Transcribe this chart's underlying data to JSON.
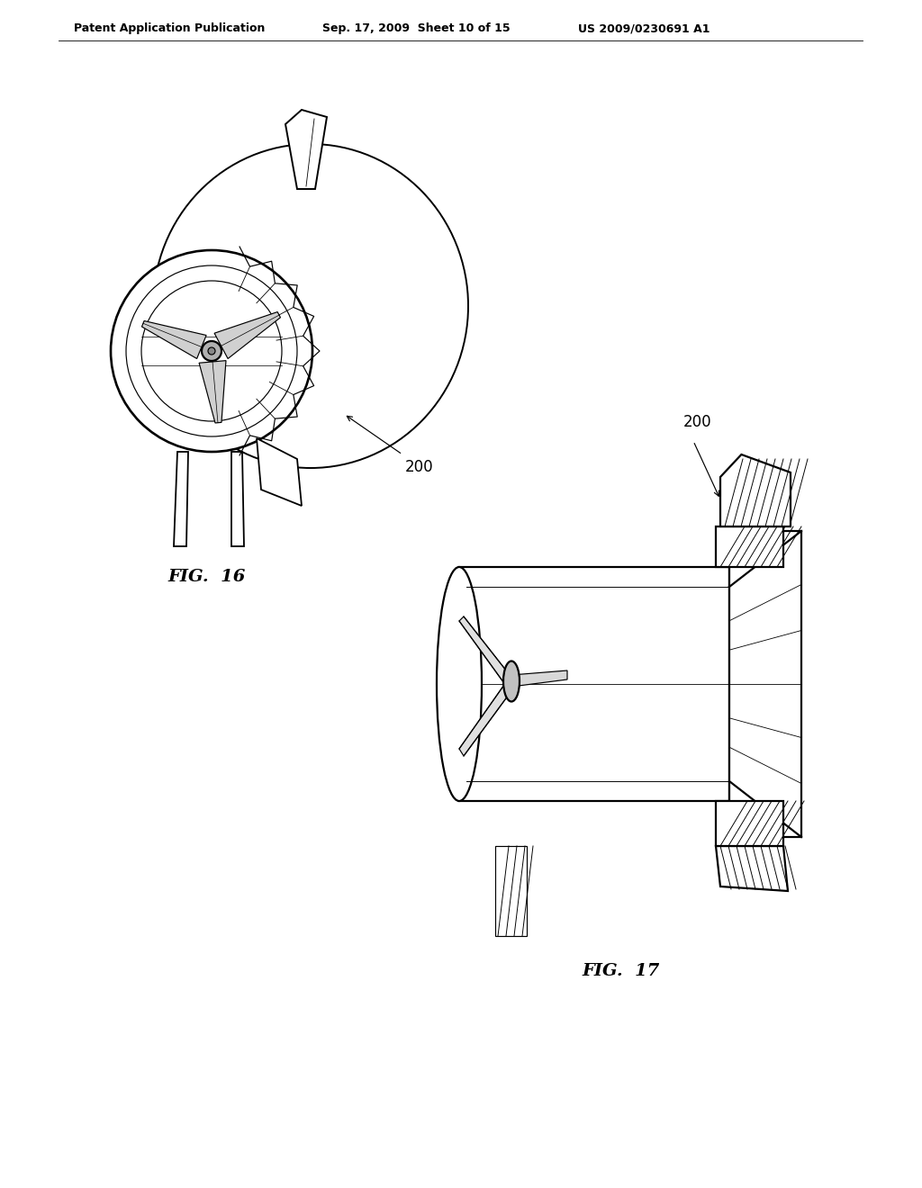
{
  "background_color": "#ffffff",
  "header_left": "Patent Application Publication",
  "header_mid": "Sep. 17, 2009  Sheet 10 of 15",
  "header_right": "US 2009/0230691 A1",
  "fig16_label": "FIG.  16",
  "fig17_label": "FIG.  17",
  "ref_200": "200",
  "lc": "#000000",
  "lw": 1.6,
  "tlw": 0.85
}
